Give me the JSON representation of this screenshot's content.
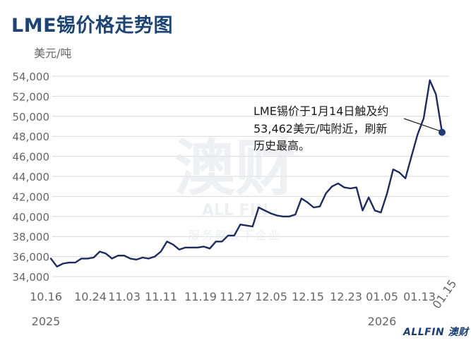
{
  "title": "LME锡价格走势图",
  "watermark": {
    "large": "澳财",
    "sub": "ALL FIN",
    "tagline": "服务原版下企业",
    "logo": "ALLFIN 澳财"
  },
  "chart_data": {
    "type": "line",
    "ylabel": "美元/吨",
    "ylim": [
      34000,
      55000
    ],
    "y_ticks": [
      "54,000",
      "52,000",
      "50,000",
      "48,000",
      "46,000",
      "44,000",
      "42,000",
      "40,000",
      "38,000",
      "36,000",
      "34,000"
    ],
    "y_tick_values": [
      54000,
      52000,
      50000,
      48000,
      46000,
      44000,
      42000,
      40000,
      38000,
      36000,
      34000
    ],
    "x_tick_labels": [
      "10.16",
      "10.24",
      "11.03",
      "11.11",
      "11.19",
      "11.27",
      "12.05",
      "12.15",
      "12.23",
      "01.05",
      "01.13",
      "01.15"
    ],
    "year_labels": [
      {
        "label": "2025",
        "under": "10.16"
      },
      {
        "label": "2026",
        "under": "01.05"
      }
    ],
    "series": [
      {
        "values": [
          35800,
          35000,
          35300,
          35400,
          35400,
          35800,
          35800,
          35900,
          36500,
          36300,
          35800,
          36100,
          36100,
          35800,
          35700,
          35900,
          35800,
          36000,
          36500,
          37500,
          37200,
          36700,
          36900,
          36900,
          36900,
          37000,
          36800,
          37500,
          37500,
          38100,
          38100,
          39200,
          39100,
          39000,
          40900,
          40600,
          40300,
          40100,
          40000,
          40000,
          40200,
          41800,
          41400,
          40900,
          41000,
          42300,
          43000,
          43300,
          42900,
          42800,
          42900,
          40600,
          41900,
          40600,
          40400,
          42300,
          44700,
          44400,
          43800,
          46000,
          48200,
          49800,
          53600,
          52200,
          48400
        ]
      }
    ],
    "marker": {
      "value": 48400,
      "index": 64
    },
    "annotation": [
      "LME锡价于1月14日触及约",
      "53,462美元/吨附近，刷新",
      "历史最高。"
    ],
    "grid": true,
    "line_color": "#1f2a5e",
    "grid_color": "#d9d9d9"
  }
}
